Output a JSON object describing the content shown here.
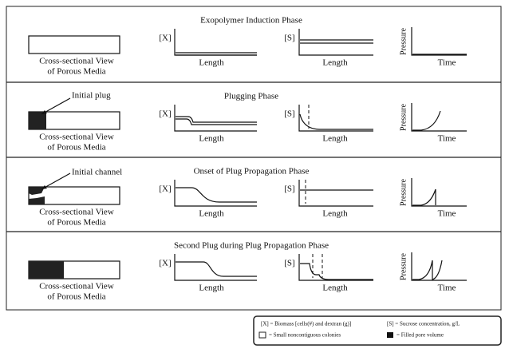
{
  "phases": [
    {
      "title": "Exopolymer Induction Phase",
      "media_label": [
        "Cross-sectional View",
        "of Porous Media"
      ],
      "x_axis": "[X]",
      "x_xlabel": "Length",
      "s_axis": "[S]",
      "s_xlabel": "Length",
      "p_axis": "Pressure",
      "p_xlabel": "Time"
    },
    {
      "title": "Plugging Phase",
      "annotation": "Initial plug",
      "media_label": [
        "Cross-sectional View",
        "of Porous Media"
      ],
      "x_axis": "[X]",
      "x_xlabel": "Length",
      "s_axis": "[S]",
      "s_xlabel": "Length",
      "p_axis": "Pressure",
      "p_xlabel": "Time"
    },
    {
      "title": "Onset of Plug Propagation Phase",
      "annotation": "Initial channel",
      "media_label": [
        "Cross-sectional View",
        "of Porous Media"
      ],
      "x_axis": "[X]",
      "x_xlabel": "Length",
      "s_axis": "[S]",
      "s_xlabel": "Length",
      "p_axis": "Pressure",
      "p_xlabel": "Time"
    },
    {
      "title": "Second Plug during Plug Propagation Phase",
      "media_label": [
        "Cross-sectional View",
        "of Porous Media"
      ],
      "x_axis": "[X]",
      "x_xlabel": "Length",
      "s_axis": "[S]",
      "s_xlabel": "Length",
      "p_axis": "Pressure",
      "p_xlabel": "Time"
    }
  ],
  "legend": {
    "x_def": "[X] = Biomass  [cells(#) and dextran (g)]",
    "s_def": "[S] = Sucrose concentration, g/L",
    "open_def": "= Small noncontiguous colonies",
    "filled_def": "= Filled pore volume"
  }
}
